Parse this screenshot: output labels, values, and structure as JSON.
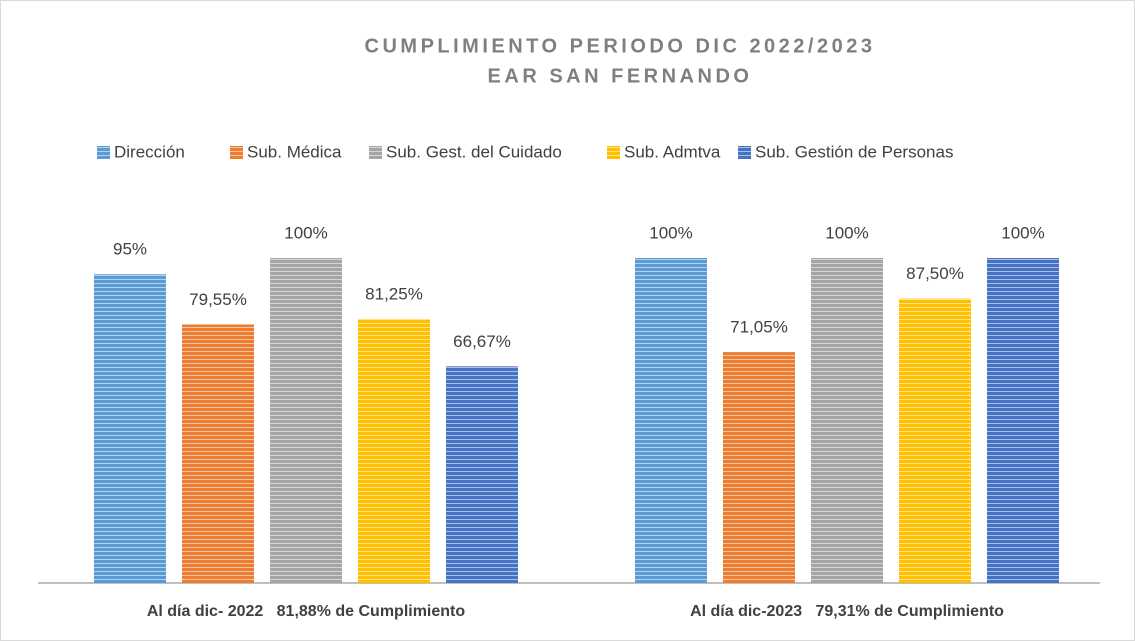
{
  "chart_data": {
    "type": "bar",
    "title": [
      "CUMPLIMIENTO PERIODO DIC 2022/2023",
      "EAR SAN FERNANDO"
    ],
    "categories": [
      "Al día dic- 2022   81,88% de Cumplimiento",
      "Al día dic-2023   79,31% de Cumplimiento"
    ],
    "series": [
      {
        "name": "Dirección",
        "color": "#5b9bd5",
        "values": [
          95,
          100
        ],
        "value_labels": [
          "95%",
          "100%"
        ]
      },
      {
        "name": "Sub. Médica",
        "color": "#ed7d31",
        "values": [
          79.55,
          71.05
        ],
        "value_labels": [
          "79,55%",
          "71,05%"
        ]
      },
      {
        "name": "Sub. Gest. del Cuidado",
        "color": "#a5a5a5",
        "values": [
          100,
          100
        ],
        "value_labels": [
          "100%",
          "100%"
        ]
      },
      {
        "name": "Sub. Admtva",
        "color": "#ffc000",
        "values": [
          81.25,
          87.5
        ],
        "value_labels": [
          "81,25%",
          "87,50%"
        ]
      },
      {
        "name": "Sub. Gestión de Personas",
        "color": "#4472c4",
        "values": [
          66.67,
          100
        ],
        "value_labels": [
          "66,67%",
          "100%"
        ]
      }
    ],
    "ylim": [
      0,
      100
    ],
    "legend": "top"
  }
}
